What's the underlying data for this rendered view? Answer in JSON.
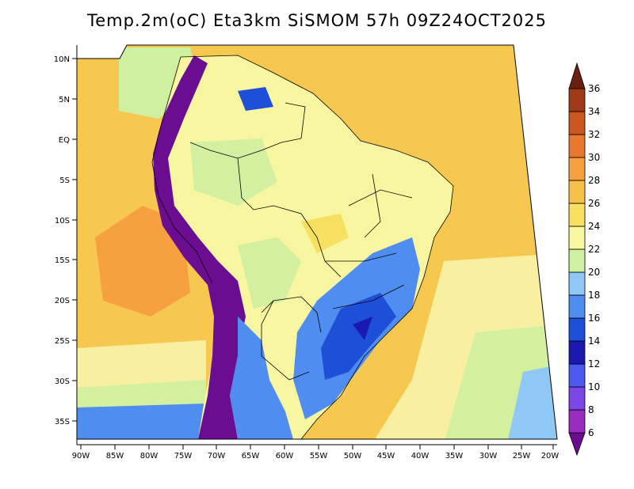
{
  "title": "Temp.2m(oC) Eta3km SiSMOM 57h 09Z24OCT2025",
  "lat_labels": [
    "10N",
    "5N",
    "EQ",
    "5S",
    "10S",
    "15S",
    "20S",
    "25S",
    "30S",
    "35S"
  ],
  "lon_labels": [
    "90W",
    "85W",
    "80W",
    "75W",
    "70W",
    "65W",
    "60W",
    "55W",
    "50W",
    "45W",
    "40W",
    "35W",
    "30W",
    "25W",
    "20W"
  ],
  "colorbar": {
    "labels": [
      "6",
      "8",
      "10",
      "12",
      "14",
      "16",
      "18",
      "20",
      "22",
      "24",
      "26",
      "28",
      "30",
      "32",
      "34",
      "36"
    ],
    "colors": [
      "#6a0d91",
      "#9a2bc0",
      "#7a46e6",
      "#4a5af0",
      "#1a1ab0",
      "#1e4fd8",
      "#4f8ef0",
      "#8fc8f5",
      "#cff0a0",
      "#f8f8a0",
      "#f7e060",
      "#f8c048",
      "#f6a040",
      "#e87830",
      "#c85820",
      "#a03a18",
      "#6a2010"
    ]
  },
  "palette": {
    "ocean_warm": "#f7c850",
    "ocean_cool": "#f8f0a0",
    "land_mild": "#f8f6a0",
    "land_green": "#d2f0a0",
    "cold_blue": "#4f8ef0",
    "cold_deep": "#1e4fd8",
    "andes": "#6a0d91",
    "hot": "#f6a040"
  }
}
